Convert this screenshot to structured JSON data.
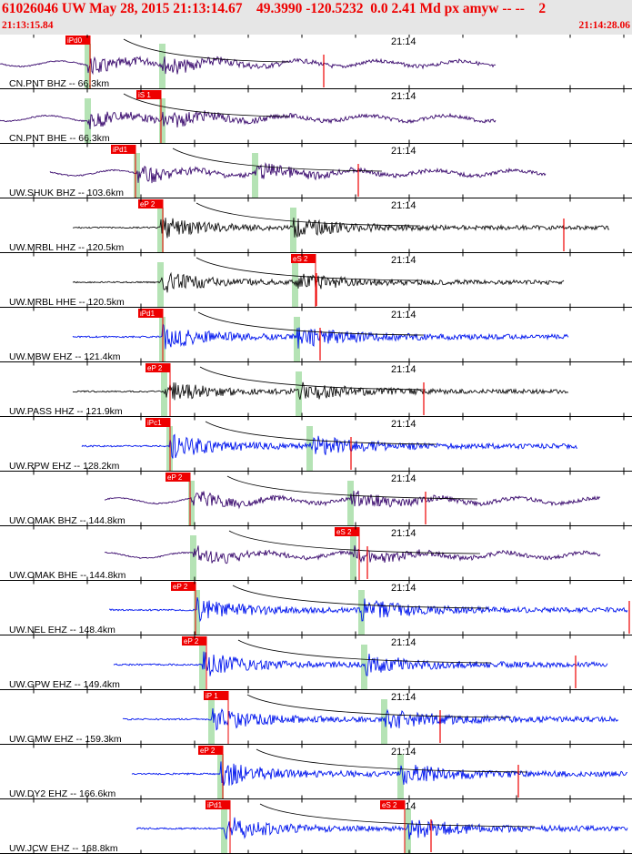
{
  "header": {
    "title": "61026046 UW May 28, 2015 21:13:14.67    49.3990 -120.5232  0.0 2.41 Md px amyw -- --    2",
    "start_time": "21:13:15.84",
    "end_time": "21:14:28.06",
    "background": "#e6e6e6",
    "text_color": "#ee0000"
  },
  "minute_label": "21:14",
  "colors": {
    "purple": "#3a0a6e",
    "black": "#111111",
    "blue": "#0015ee",
    "pick": "#ee0000",
    "window": "#b5e3b5"
  },
  "traces": [
    {
      "label": "CN.PNT BHZ -- 66.3km",
      "color": "purple",
      "pick": "iPd0",
      "pick2": ""
    },
    {
      "label": "CN.PNT BHE -- 66.3km",
      "color": "purple",
      "pick": "iS 1",
      "pick2": ""
    },
    {
      "label": "UW.SHUK BHZ -- 103.6km",
      "color": "purple",
      "pick": "iPd1",
      "pick2": ""
    },
    {
      "label": "UW.MRBL HHZ -- 120.5km",
      "color": "black",
      "pick": "eP 2",
      "pick2": ""
    },
    {
      "label": "UW.MRBL HHE -- 120.5km",
      "color": "black",
      "pick": "",
      "pick2": "eS 2"
    },
    {
      "label": "UW.MBW EHZ -- 121.4km",
      "color": "blue",
      "pick": "iPd1",
      "pick2": ""
    },
    {
      "label": "UW.PASS HHZ -- 121.9km",
      "color": "black",
      "pick": "eP 2",
      "pick2": ""
    },
    {
      "label": "UW.RPW EHZ -- 128.2km",
      "color": "blue",
      "pick": "iPc1",
      "pick2": ""
    },
    {
      "label": "UW.OMAK BHZ -- 144.8km",
      "color": "purple",
      "pick": "eP 2",
      "pick2": ""
    },
    {
      "label": "UW.OMAK BHE -- 144.8km",
      "color": "purple",
      "pick": "",
      "pick2": "eS 2"
    },
    {
      "label": "UW.NEL EHZ -- 148.4km",
      "color": "blue",
      "pick": "eP 2",
      "pick2": ""
    },
    {
      "label": "UW.GPW EHZ -- 149.4km",
      "color": "blue",
      "pick": "eP 2",
      "pick2": ""
    },
    {
      "label": "UW.GMW EHZ -- 159.3km",
      "color": "blue",
      "pick": "iP 1",
      "pick2": ""
    },
    {
      "label": "UW.DY2 EHZ -- 166.6km",
      "color": "blue",
      "pick": "eP 2",
      "pick2": ""
    },
    {
      "label": "UW.JCW EHZ -- 168.8km",
      "color": "blue",
      "pick": "iPd1",
      "pick2": "eS 2"
    }
  ]
}
